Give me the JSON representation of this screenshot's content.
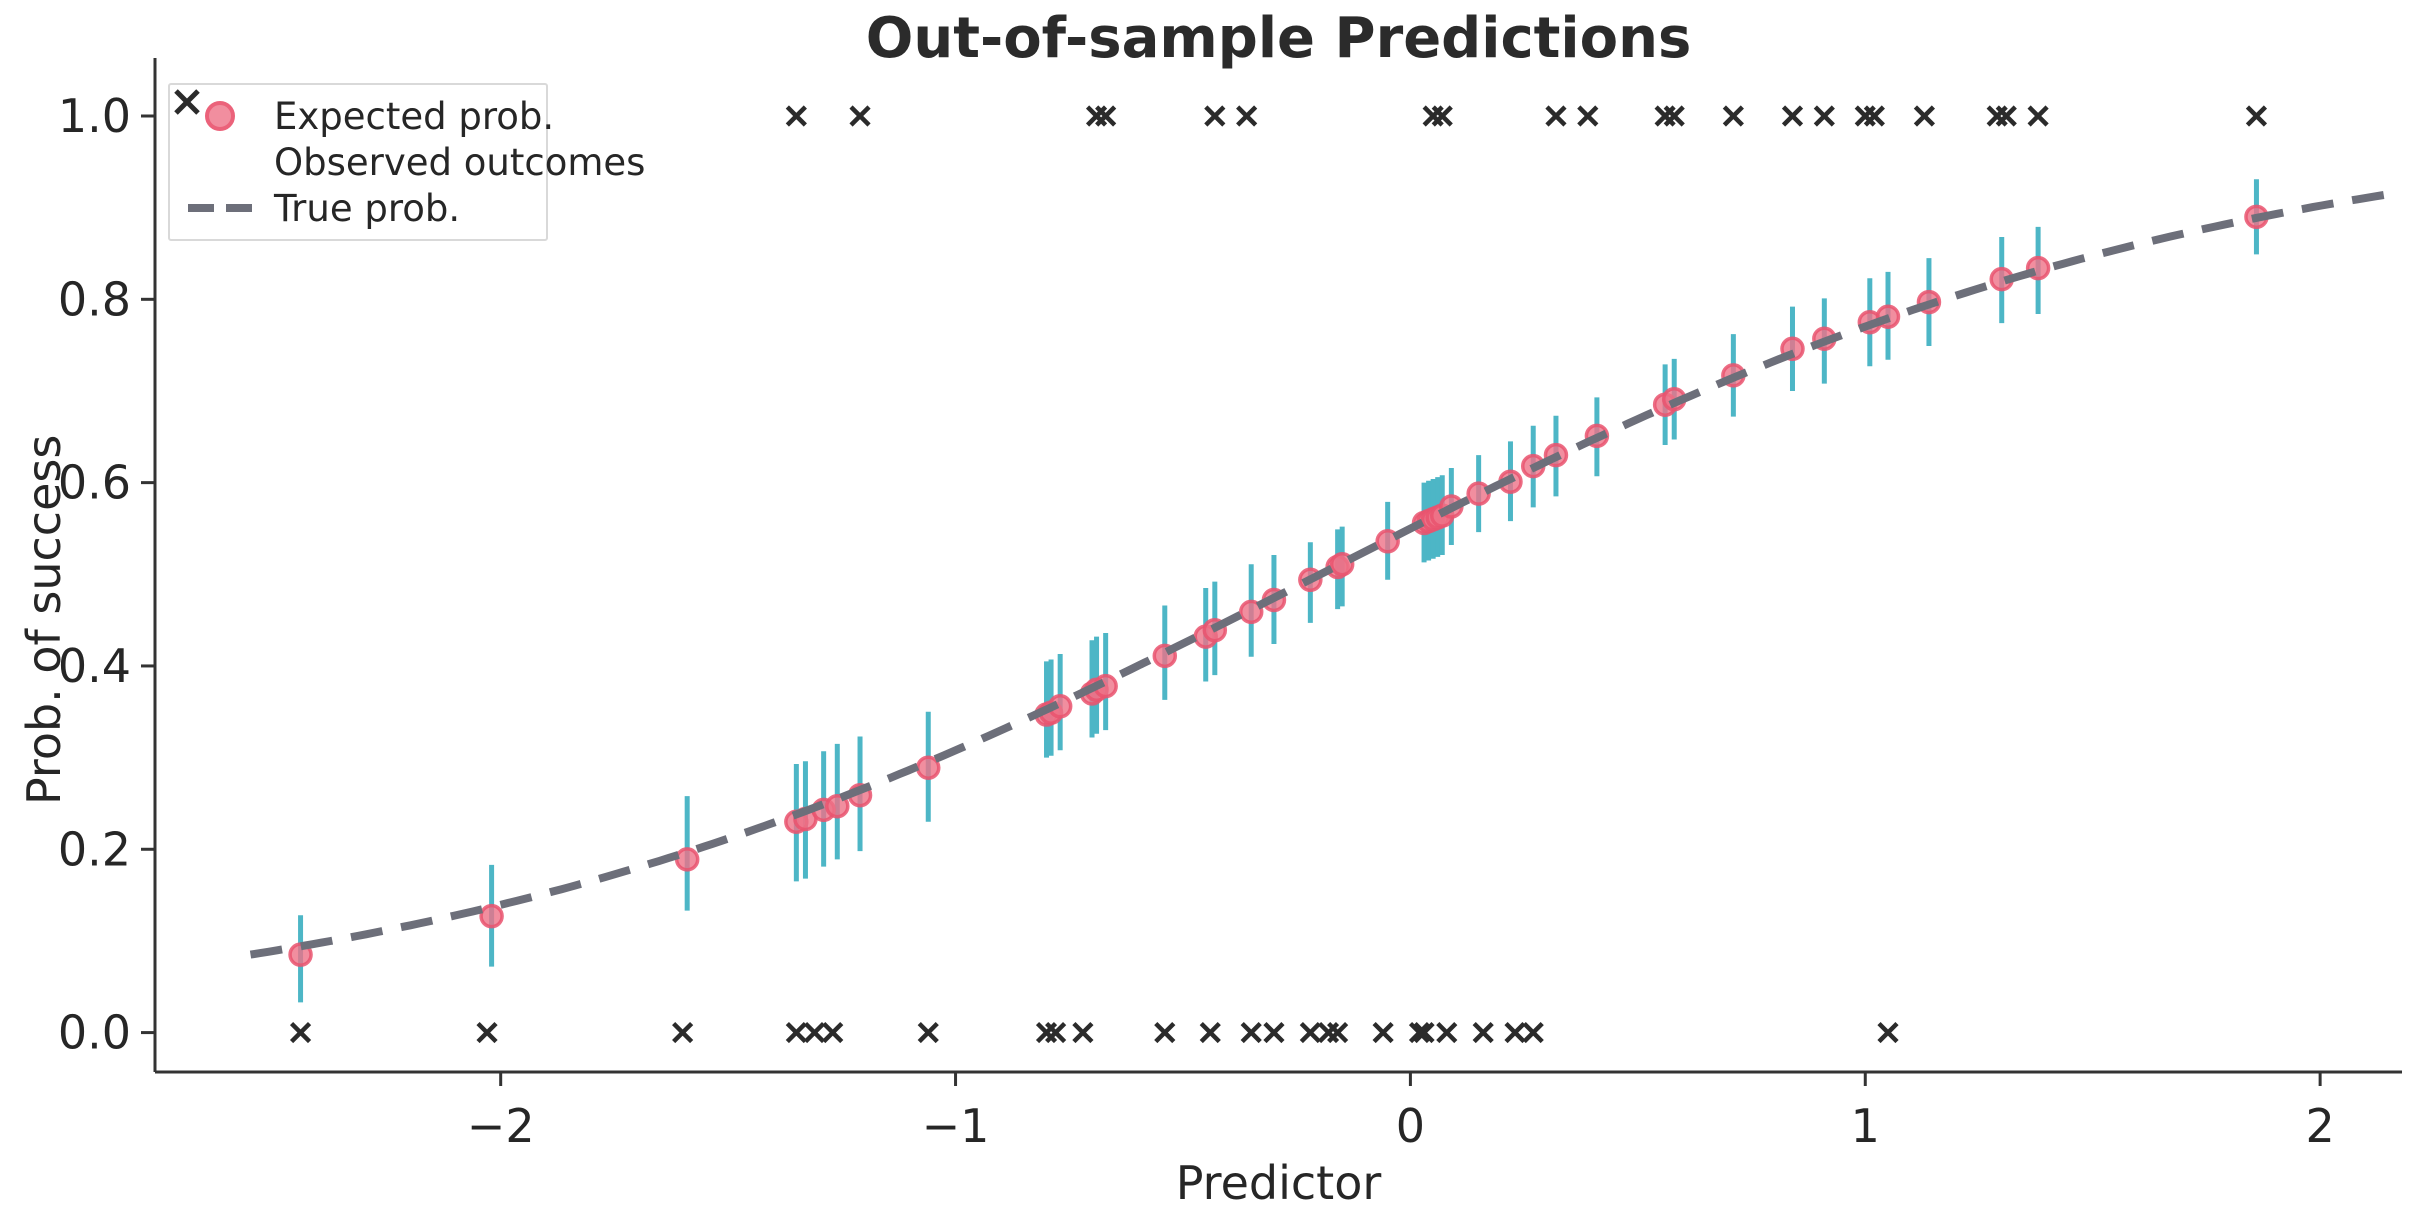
{
  "colors": {
    "dot_fill": "#ee7287",
    "dot_edge": "#e9546e",
    "errorbar": "#4db6c6",
    "true_curve": "#6d6f7a",
    "observed_marker": "#2b2b2b",
    "text": "#262626",
    "spine": "#333333",
    "legend_border": "#d9d9d9"
  },
  "legend": {
    "items": [
      {
        "marker": "dot",
        "label": "Expected prob."
      },
      {
        "marker": "x",
        "label": "Observed outcomes"
      },
      {
        "marker": "dash",
        "label": "True prob."
      }
    ]
  },
  "chart_data": {
    "type": "scatter",
    "title": "Out-of-sample Predictions",
    "xlabel": "Predictor",
    "ylabel": "Prob. of success",
    "xlim": [
      -2.76,
      2.18
    ],
    "ylim": [
      -0.043,
      1.048
    ],
    "grid": false,
    "legend_position": "upper left",
    "x_tick_values": [
      -2,
      -1,
      0,
      1,
      2
    ],
    "x_tick_labels": [
      "−2",
      "−1",
      "0",
      "1",
      "2"
    ],
    "y_tick_values": [
      0.0,
      0.2,
      0.4,
      0.6,
      0.8,
      1.0
    ],
    "y_tick_labels": [
      "0.0",
      "0.2",
      "0.4",
      "0.6",
      "0.8",
      "1.0"
    ],
    "series": [
      {
        "name": "Expected prob.",
        "kind": "points_with_error_bars",
        "columns": [
          "x",
          "y",
          "ci_low",
          "ci_high"
        ],
        "points": [
          [
            -2.44,
            0.085,
            0.033,
            0.128
          ],
          [
            -2.02,
            0.127,
            0.072,
            0.183
          ],
          [
            -1.59,
            0.189,
            0.133,
            0.258
          ],
          [
            -1.35,
            0.23,
            0.165,
            0.293
          ],
          [
            -1.33,
            0.233,
            0.168,
            0.296
          ],
          [
            -1.29,
            0.243,
            0.181,
            0.307
          ],
          [
            -1.26,
            0.247,
            0.189,
            0.315
          ],
          [
            -1.21,
            0.259,
            0.198,
            0.323
          ],
          [
            -1.06,
            0.289,
            0.23,
            0.35
          ],
          [
            -0.8,
            0.347,
            0.3,
            0.405
          ],
          [
            -0.79,
            0.349,
            0.302,
            0.407
          ],
          [
            -0.77,
            0.356,
            0.308,
            0.413
          ],
          [
            -0.7,
            0.37,
            0.322,
            0.428
          ],
          [
            -0.69,
            0.374,
            0.326,
            0.432
          ],
          [
            -0.67,
            0.378,
            0.33,
            0.436
          ],
          [
            -0.54,
            0.411,
            0.363,
            0.466
          ],
          [
            -0.45,
            0.432,
            0.383,
            0.485
          ],
          [
            -0.43,
            0.439,
            0.39,
            0.492
          ],
          [
            -0.35,
            0.459,
            0.41,
            0.511
          ],
          [
            -0.3,
            0.472,
            0.424,
            0.521
          ],
          [
            -0.22,
            0.494,
            0.447,
            0.535
          ],
          [
            -0.16,
            0.508,
            0.462,
            0.549
          ],
          [
            -0.15,
            0.511,
            0.465,
            0.552
          ],
          [
            -0.05,
            0.536,
            0.494,
            0.579
          ],
          [
            0.03,
            0.556,
            0.513,
            0.6
          ],
          [
            0.04,
            0.558,
            0.515,
            0.602
          ],
          [
            0.05,
            0.56,
            0.517,
            0.604
          ],
          [
            0.06,
            0.562,
            0.519,
            0.606
          ],
          [
            0.07,
            0.564,
            0.521,
            0.608
          ],
          [
            0.09,
            0.574,
            0.532,
            0.616
          ],
          [
            0.15,
            0.588,
            0.546,
            0.63
          ],
          [
            0.22,
            0.601,
            0.558,
            0.645
          ],
          [
            0.27,
            0.618,
            0.573,
            0.662
          ],
          [
            0.32,
            0.63,
            0.585,
            0.673
          ],
          [
            0.41,
            0.651,
            0.607,
            0.693
          ],
          [
            0.56,
            0.685,
            0.641,
            0.729
          ],
          [
            0.58,
            0.691,
            0.647,
            0.735
          ],
          [
            0.71,
            0.717,
            0.672,
            0.762
          ],
          [
            0.84,
            0.746,
            0.7,
            0.792
          ],
          [
            0.91,
            0.757,
            0.708,
            0.801
          ],
          [
            1.01,
            0.775,
            0.727,
            0.823
          ],
          [
            1.05,
            0.781,
            0.734,
            0.83
          ],
          [
            1.14,
            0.797,
            0.749,
            0.845
          ],
          [
            1.3,
            0.822,
            0.774,
            0.868
          ],
          [
            1.38,
            0.834,
            0.784,
            0.879
          ],
          [
            1.86,
            0.89,
            0.849,
            0.931
          ]
        ]
      },
      {
        "name": "Observed outcomes",
        "kind": "binary_outcome_x_markers",
        "ones_x": [
          -1.35,
          -1.21,
          -0.69,
          -0.67,
          -0.43,
          -0.36,
          0.05,
          0.07,
          0.32,
          0.39,
          0.56,
          0.58,
          0.71,
          0.84,
          0.91,
          1.0,
          1.02,
          1.13,
          1.29,
          1.31,
          1.38,
          1.86
        ],
        "zeros_x": [
          -2.44,
          -2.03,
          -1.6,
          -1.35,
          -1.31,
          -1.27,
          -1.06,
          -0.8,
          -0.78,
          -0.72,
          -0.54,
          -0.44,
          -0.35,
          -0.3,
          -0.22,
          -0.18,
          -0.16,
          -0.06,
          0.02,
          0.03,
          0.08,
          0.16,
          0.23,
          0.27,
          1.05
        ]
      },
      {
        "name": "True prob.",
        "kind": "dashed_curve",
        "model": "logistic",
        "intercept": 0.2,
        "slope": 1.01,
        "x_start": -2.55,
        "x_end": 2.14
      }
    ]
  }
}
